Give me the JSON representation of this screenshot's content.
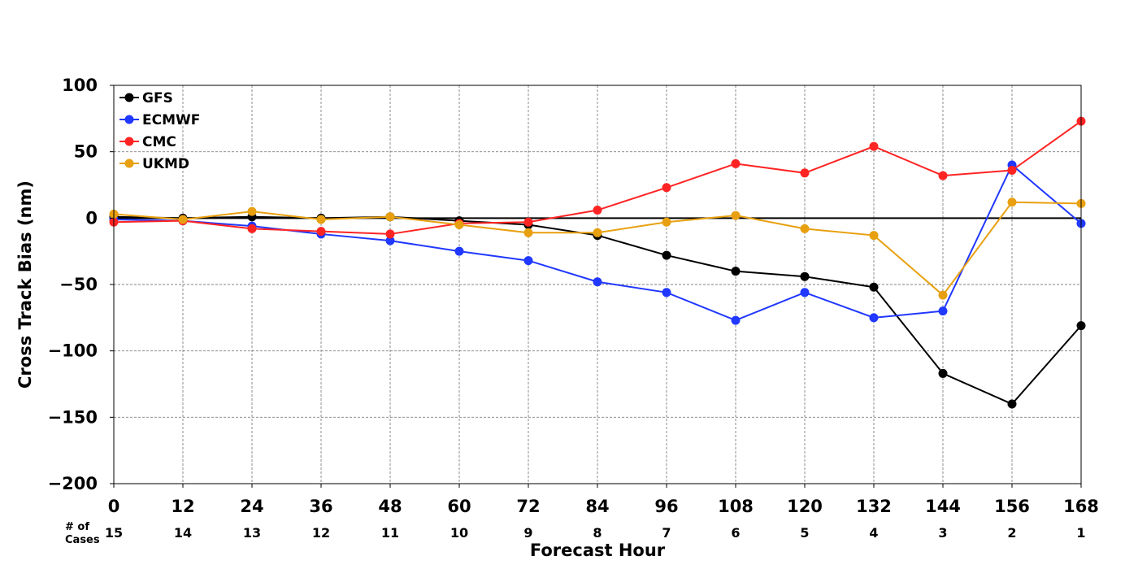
{
  "chart_data": {
    "type": "line",
    "title": "",
    "xlabel": "Forecast Hour",
    "ylabel": "Cross Track Bias (nm)",
    "x": [
      0,
      12,
      24,
      36,
      48,
      60,
      72,
      84,
      96,
      108,
      120,
      132,
      144,
      156,
      168
    ],
    "xlim": [
      0,
      168
    ],
    "ylim": [
      -200,
      100
    ],
    "yticks": [
      100,
      50,
      0,
      -50,
      -100,
      -150,
      -200
    ],
    "ytick_labels": [
      "100",
      "50",
      "0",
      "−50",
      "−100",
      "−150",
      "−200"
    ],
    "xtick_labels": [
      "0",
      "12",
      "24",
      "36",
      "48",
      "60",
      "72",
      "84",
      "96",
      "108",
      "120",
      "132",
      "144",
      "156",
      "168"
    ],
    "cases_caption": [
      "# of",
      "Cases"
    ],
    "cases": [
      "15",
      "14",
      "13",
      "12",
      "11",
      "10",
      "9",
      "8",
      "7",
      "6",
      "5",
      "4",
      "3",
      "2",
      "1"
    ],
    "grid": true,
    "zero_line": true,
    "legend_position": "top-left",
    "series": [
      {
        "name": "GFS",
        "color": "#000000",
        "values": [
          1,
          0,
          1,
          0,
          1,
          -2,
          -5,
          -13,
          -28,
          -40,
          -44,
          -52,
          -117,
          -140,
          -81
        ]
      },
      {
        "name": "ECMWF",
        "color": "#2038ff",
        "values": [
          -1,
          -2,
          -6,
          -12,
          -17,
          -25,
          -32,
          -48,
          -56,
          -77,
          -56,
          -75,
          -70,
          40,
          -4
        ]
      },
      {
        "name": "CMC",
        "color": "#ff2424",
        "values": [
          -3,
          -2,
          -8,
          -10,
          -12,
          -4,
          -3,
          6,
          23,
          41,
          34,
          54,
          32,
          36,
          73
        ]
      },
      {
        "name": "UKMD",
        "color": "#e8a010",
        "values": [
          3,
          -1,
          5,
          -1,
          1,
          -5,
          -11,
          -11,
          -3,
          2,
          -8,
          -13,
          -58,
          12,
          11
        ]
      }
    ]
  }
}
